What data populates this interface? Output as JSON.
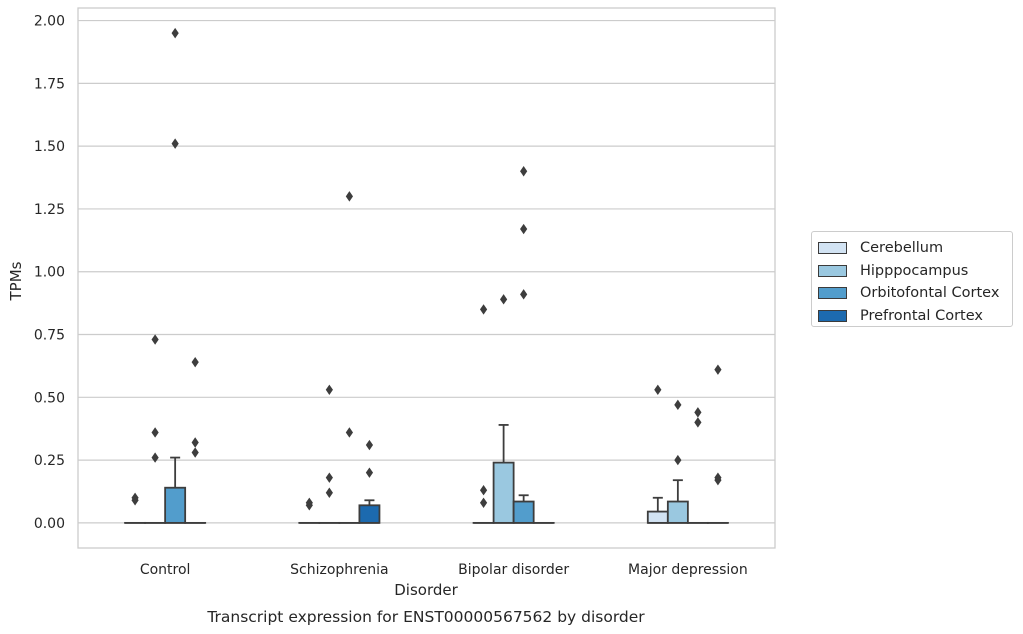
{
  "chart_data": {
    "type": "box",
    "title": "Transcript expression for ENST00000567562 by disorder",
    "xlabel": "Disorder",
    "ylabel": "TPMs",
    "ylim": [
      -0.1,
      2.05
    ],
    "yticks": [
      "0.00",
      "0.25",
      "0.50",
      "0.75",
      "1.00",
      "1.25",
      "1.50",
      "1.75",
      "2.00"
    ],
    "ytick_values": [
      0,
      0.25,
      0.5,
      0.75,
      1.0,
      1.25,
      1.5,
      1.75,
      2.0
    ],
    "grid": true,
    "legend_position": "right",
    "categories": [
      "Control",
      "Schizophrenia",
      "Bipolar disorder",
      "Major depression"
    ],
    "series": [
      {
        "name": "Cerebellum",
        "color": "#d2e3f3",
        "boxes": [
          {
            "q1": 0,
            "median": 0,
            "q3": 0,
            "whisker_low": 0,
            "whisker_high": 0,
            "outliers": [
              0.09,
              0.1
            ]
          },
          {
            "q1": 0,
            "median": 0,
            "q3": 0,
            "whisker_low": 0,
            "whisker_high": 0,
            "outliers": [
              0.07,
              0.08
            ]
          },
          {
            "q1": 0,
            "median": 0,
            "q3": 0,
            "whisker_low": 0,
            "whisker_high": 0,
            "outliers": [
              0.08,
              0.13,
              0.85
            ]
          },
          {
            "q1": 0,
            "median": 0,
            "q3": 0.045,
            "whisker_low": 0,
            "whisker_high": 0.1,
            "outliers": [
              0.53
            ]
          }
        ]
      },
      {
        "name": "Hipppocampus",
        "color": "#9ac8e0",
        "boxes": [
          {
            "q1": 0,
            "median": 0,
            "q3": 0,
            "whisker_low": 0,
            "whisker_high": 0,
            "outliers": [
              0.26,
              0.36,
              0.73
            ]
          },
          {
            "q1": 0,
            "median": 0,
            "q3": 0,
            "whisker_low": 0,
            "whisker_high": 0,
            "outliers": [
              0.12,
              0.18,
              0.53
            ]
          },
          {
            "q1": 0,
            "median": 0,
            "q3": 0.24,
            "whisker_low": 0,
            "whisker_high": 0.39,
            "outliers": [
              0.89
            ]
          },
          {
            "q1": 0,
            "median": 0,
            "q3": 0.085,
            "whisker_low": 0,
            "whisker_high": 0.17,
            "outliers": [
              0.25,
              0.47
            ]
          }
        ]
      },
      {
        "name": "Orbitofontal Cortex",
        "color": "#529dcc",
        "boxes": [
          {
            "q1": 0,
            "median": 0,
            "q3": 0.14,
            "whisker_low": 0,
            "whisker_high": 0.26,
            "outliers": [
              1.51,
              1.95
            ]
          },
          {
            "q1": 0,
            "median": 0,
            "q3": 0,
            "whisker_low": 0,
            "whisker_high": 0,
            "outliers": [
              0.36,
              1.3
            ]
          },
          {
            "q1": 0,
            "median": 0,
            "q3": 0.085,
            "whisker_low": 0,
            "whisker_high": 0.11,
            "outliers": [
              0.91,
              1.17,
              1.4
            ]
          },
          {
            "q1": 0,
            "median": 0,
            "q3": 0,
            "whisker_low": 0,
            "whisker_high": 0,
            "outliers": [
              0.4,
              0.44
            ]
          }
        ]
      },
      {
        "name": "Prefrontal Cortex",
        "color": "#1c6aaf",
        "boxes": [
          {
            "q1": 0,
            "median": 0,
            "q3": 0,
            "whisker_low": 0,
            "whisker_high": 0,
            "outliers": [
              0.28,
              0.32,
              0.64
            ]
          },
          {
            "q1": 0,
            "median": 0,
            "q3": 0.07,
            "whisker_low": 0,
            "whisker_high": 0.09,
            "outliers": [
              0.2,
              0.31
            ]
          },
          {
            "q1": 0,
            "median": 0,
            "q3": 0,
            "whisker_low": 0,
            "whisker_high": 0,
            "outliers": []
          },
          {
            "q1": 0,
            "median": 0,
            "q3": 0,
            "whisker_low": 0,
            "whisker_high": 0,
            "outliers": [
              0.17,
              0.18,
              0.61
            ]
          }
        ]
      }
    ]
  }
}
